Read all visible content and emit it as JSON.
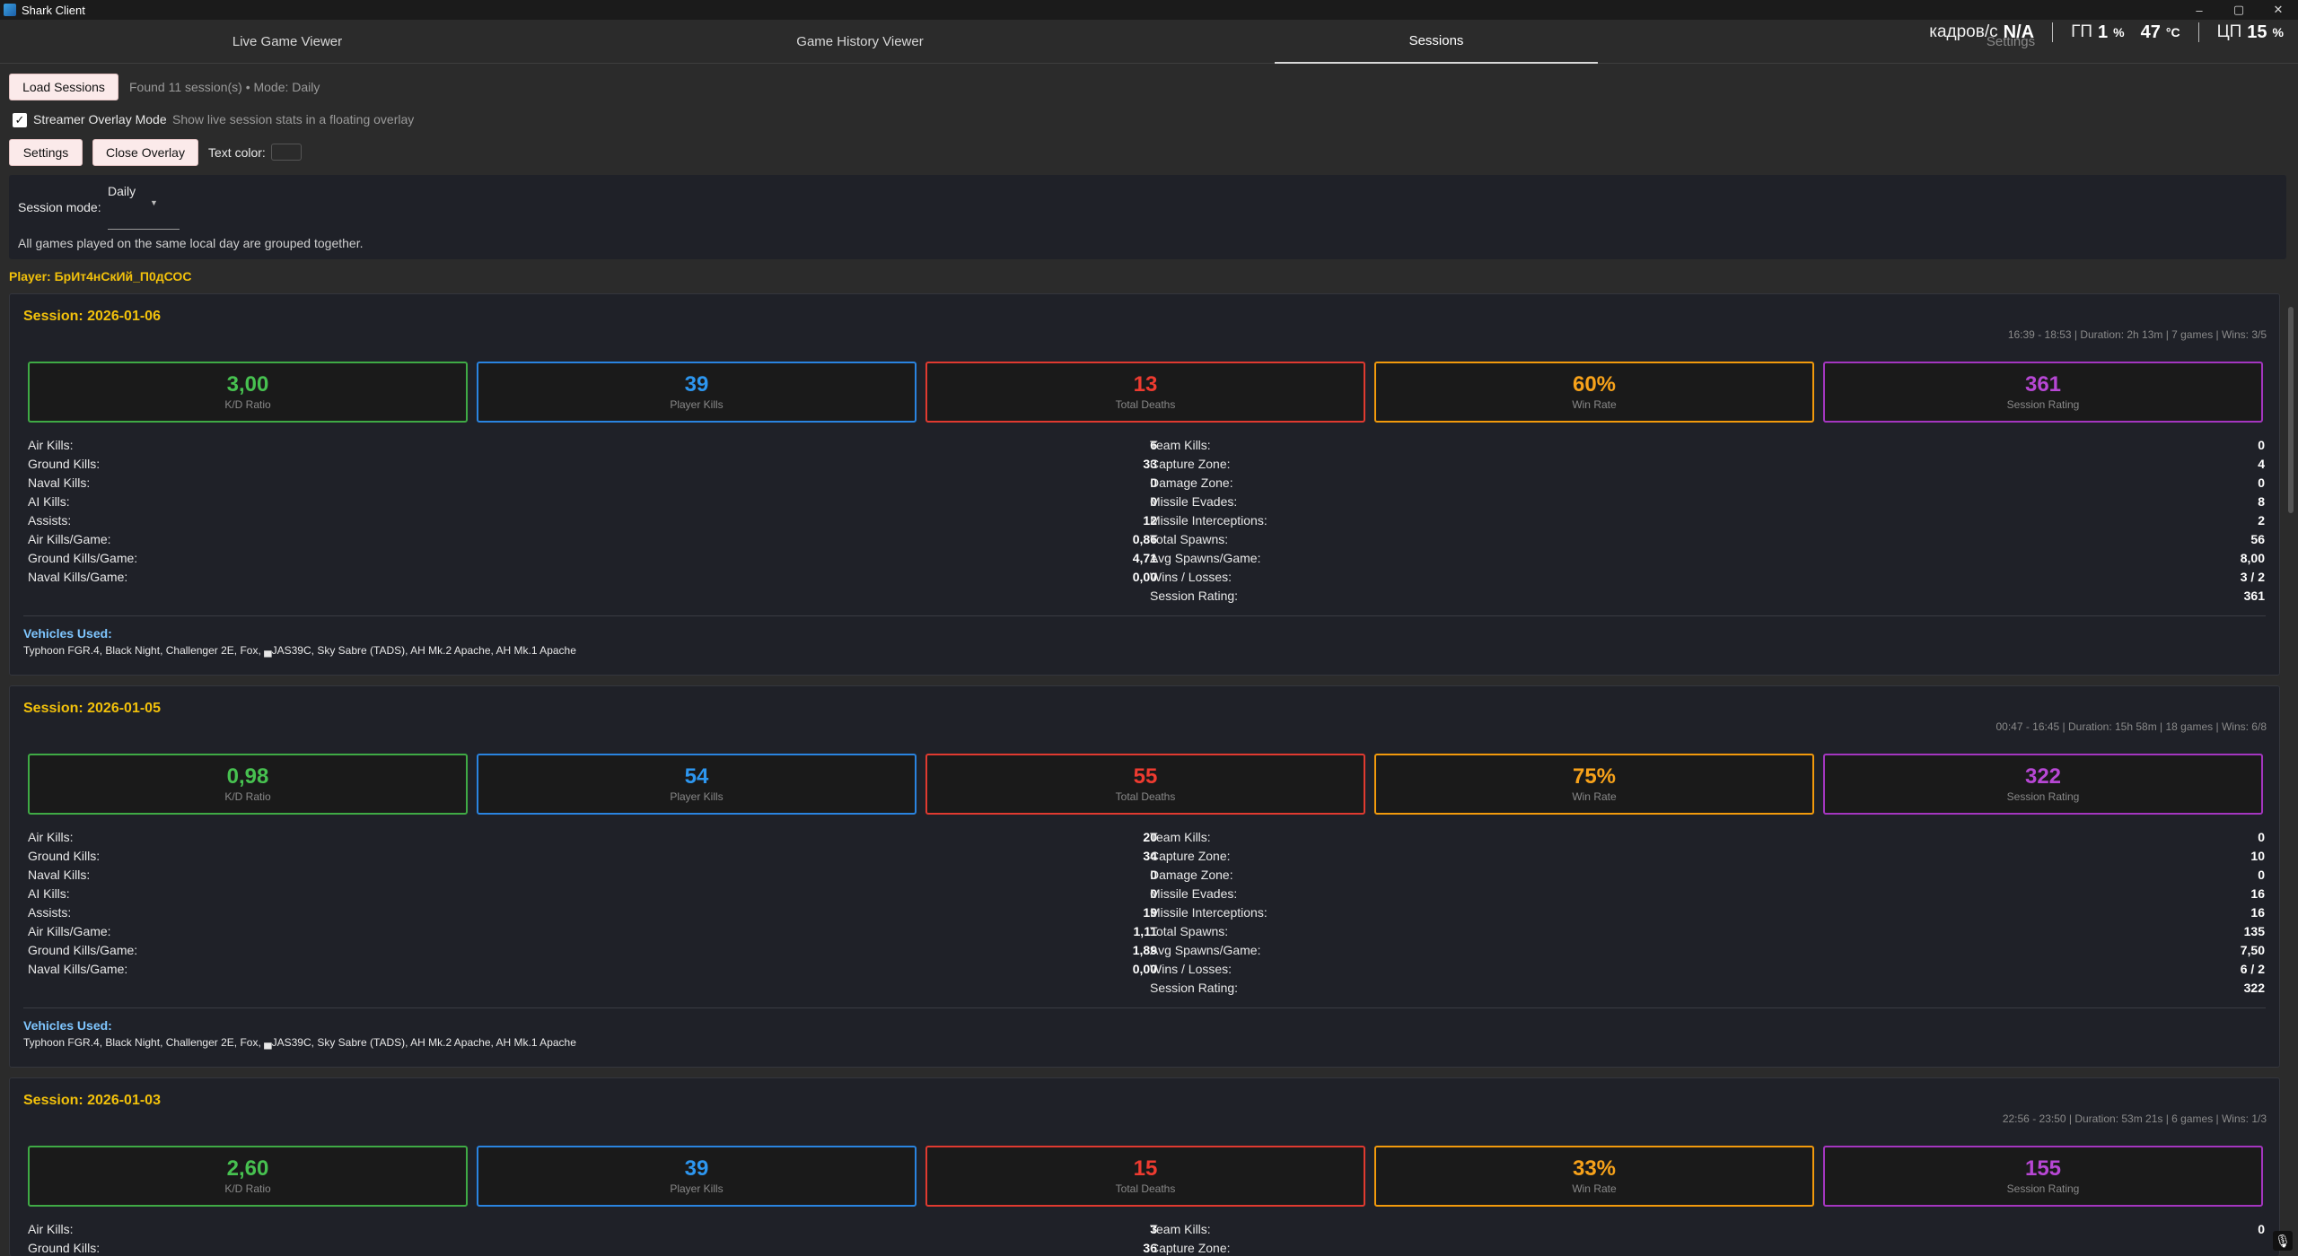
{
  "window": {
    "title": "Shark Client",
    "controls": [
      "–",
      "▢",
      "✕"
    ]
  },
  "tabs": [
    {
      "label": "Live Game Viewer",
      "active": false
    },
    {
      "label": "Game History Viewer",
      "active": false
    },
    {
      "label": "Sessions",
      "active": true
    },
    {
      "label": "Settings",
      "active": false
    }
  ],
  "hud": {
    "fps_label": "кадров/с",
    "fps_value": "N/A",
    "gpu_label": "ГП",
    "gpu_value": "1",
    "gpu_unit": "%",
    "gpu_temp": "47",
    "gpu_temp_unit": "°C",
    "cpu_label": "ЦП",
    "cpu_value": "15",
    "cpu_unit": "%"
  },
  "controls": {
    "load_label": "Load Sessions",
    "found_text": "Found 11 session(s) • Mode: Daily",
    "overlay_label": "Streamer Overlay Mode",
    "overlay_hint": "Show live session stats in a floating overlay",
    "overlay_checked": true,
    "settings_label": "Settings",
    "close_overlay_label": "Close Overlay",
    "text_color_label": "Text color:"
  },
  "mode": {
    "label": "Session mode:",
    "value": "Daily",
    "description": "All games played on the same local day are grouped together."
  },
  "player": "Player: БрИт4нСкИй_П0дСОС",
  "colors": {
    "green": "#47c150",
    "blue": "#2d96ef",
    "red": "#ee3b30",
    "orange": "#f7a21a",
    "purple": "#b747d4",
    "gold": "#f2c10b"
  },
  "sessions": [
    {
      "title": "Session: 2026-01-06",
      "meta": "16:39 - 18:53 | Duration: 2h 13m | 7 games | Wins: 3/5",
      "cards": [
        {
          "value": "3,00",
          "label": "K/D Ratio"
        },
        {
          "value": "39",
          "label": "Player Kills"
        },
        {
          "value": "13",
          "label": "Total Deaths"
        },
        {
          "value": "60%",
          "label": "Win Rate"
        },
        {
          "value": "361",
          "label": "Session Rating"
        }
      ],
      "left": [
        {
          "k": "Air Kills:",
          "v": "6"
        },
        {
          "k": "Ground Kills:",
          "v": "33"
        },
        {
          "k": "Naval Kills:",
          "v": "0"
        },
        {
          "k": "AI Kills:",
          "v": "0"
        },
        {
          "k": "Assists:",
          "v": "12"
        },
        {
          "k": "Air Kills/Game:",
          "v": "0,86"
        },
        {
          "k": "Ground Kills/Game:",
          "v": "4,71"
        },
        {
          "k": "Naval Kills/Game:",
          "v": "0,00"
        }
      ],
      "right": [
        {
          "k": "Team Kills:",
          "v": "0"
        },
        {
          "k": "Capture Zone:",
          "v": "4"
        },
        {
          "k": "Damage Zone:",
          "v": "0"
        },
        {
          "k": "Missile Evades:",
          "v": "8"
        },
        {
          "k": "Missile Interceptions:",
          "v": "2"
        },
        {
          "k": "Total Spawns:",
          "v": "56"
        },
        {
          "k": "Avg Spawns/Game:",
          "v": "8,00"
        },
        {
          "k": "Wins / Losses:",
          "v": "3 / 2"
        },
        {
          "k": "Session Rating:",
          "v": "361"
        }
      ],
      "vehicles_label": "Vehicles Used:",
      "vehicles": "Typhoon FGR.4, Black Night, Challenger 2E, Fox, ▄JAS39C, Sky Sabre (TADS), AH Mk.2 Apache, AH Mk.1 Apache"
    },
    {
      "title": "Session: 2026-01-05",
      "meta": "00:47 - 16:45 | Duration: 15h 58m | 18 games | Wins: 6/8",
      "cards": [
        {
          "value": "0,98",
          "label": "K/D Ratio"
        },
        {
          "value": "54",
          "label": "Player Kills"
        },
        {
          "value": "55",
          "label": "Total Deaths"
        },
        {
          "value": "75%",
          "label": "Win Rate"
        },
        {
          "value": "322",
          "label": "Session Rating"
        }
      ],
      "left": [
        {
          "k": "Air Kills:",
          "v": "20"
        },
        {
          "k": "Ground Kills:",
          "v": "34"
        },
        {
          "k": "Naval Kills:",
          "v": "0"
        },
        {
          "k": "AI Kills:",
          "v": "0"
        },
        {
          "k": "Assists:",
          "v": "19"
        },
        {
          "k": "Air Kills/Game:",
          "v": "1,11"
        },
        {
          "k": "Ground Kills/Game:",
          "v": "1,89"
        },
        {
          "k": "Naval Kills/Game:",
          "v": "0,00"
        }
      ],
      "right": [
        {
          "k": "Team Kills:",
          "v": "0"
        },
        {
          "k": "Capture Zone:",
          "v": "10"
        },
        {
          "k": "Damage Zone:",
          "v": "0"
        },
        {
          "k": "Missile Evades:",
          "v": "16"
        },
        {
          "k": "Missile Interceptions:",
          "v": "16"
        },
        {
          "k": "Total Spawns:",
          "v": "135"
        },
        {
          "k": "Avg Spawns/Game:",
          "v": "7,50"
        },
        {
          "k": "Wins / Losses:",
          "v": "6 / 2"
        },
        {
          "k": "Session Rating:",
          "v": "322"
        }
      ],
      "vehicles_label": "Vehicles Used:",
      "vehicles": "Typhoon FGR.4, Black Night, Challenger 2E, Fox, ▄JAS39C, Sky Sabre (TADS), AH Mk.2 Apache, AH Mk.1 Apache"
    },
    {
      "title": "Session: 2026-01-03",
      "meta": "22:56 - 23:50 | Duration: 53m 21s | 6 games | Wins: 1/3",
      "cards": [
        {
          "value": "2,60",
          "label": "K/D Ratio"
        },
        {
          "value": "39",
          "label": "Player Kills"
        },
        {
          "value": "15",
          "label": "Total Deaths"
        },
        {
          "value": "33%",
          "label": "Win Rate"
        },
        {
          "value": "155",
          "label": "Session Rating"
        }
      ],
      "left": [
        {
          "k": "Air Kills:",
          "v": "3"
        },
        {
          "k": "Ground Kills:",
          "v": "36"
        }
      ],
      "right": [
        {
          "k": "Team Kills:",
          "v": "0"
        },
        {
          "k": "Capture Zone:",
          "v": ""
        }
      ]
    }
  ]
}
